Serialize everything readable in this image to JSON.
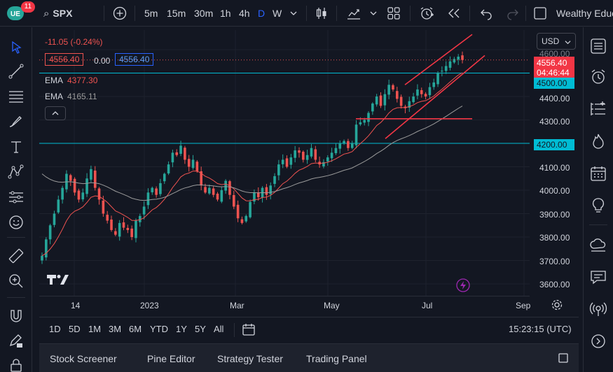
{
  "toolbar": {
    "badge": "11",
    "symbol": "SPX",
    "timeframes": [
      "5m",
      "15m",
      "30m",
      "1h",
      "4h",
      "D",
      "W"
    ],
    "active_timeframe": "D",
    "layout_name": "Wealthy Educ"
  },
  "legend": {
    "change": "-11.05 (-0.24%)",
    "bid": "4556.40",
    "spread": "0.00",
    "ask": "4556.40",
    "ema1_label": "EMA",
    "ema1_value": "4377.30",
    "ema2_label": "EMA",
    "ema2_value": "4165.11"
  },
  "price_axis": {
    "currency": "USD",
    "current_price": "4556.40",
    "countdown": "04:46:44",
    "level_4500": "4500.00",
    "level_4200": "4200.00",
    "ticks": [
      "4600.00",
      "4400.00",
      "4300.00",
      "4100.00",
      "4000.00",
      "3900.00",
      "3800.00",
      "3700.00",
      "3600.00"
    ]
  },
  "time_axis": {
    "labels": [
      "14",
      "2023",
      "Mar",
      "May",
      "Jul",
      "Sep"
    ]
  },
  "range_bar": {
    "ranges": [
      "1D",
      "5D",
      "1M",
      "3M",
      "6M",
      "YTD",
      "1Y",
      "5Y",
      "All"
    ],
    "clock": "15:23:15 (UTC)"
  },
  "bottom_tabs": [
    "Stock Screener",
    "Pine Editor",
    "Strategy Tester",
    "Trading Panel"
  ],
  "colors": {
    "up": "#26a69a",
    "down": "#ef5350",
    "ema_fast": "#ef5350",
    "ema_slow": "#9b9b9b",
    "hline": "#00bcd4",
    "trendline": "#f23645",
    "accent": "#2962ff"
  },
  "chart_data": {
    "type": "candlestick",
    "ylim": [
      3600,
      4600
    ],
    "closes": [
      3720,
      3790,
      3850,
      3900,
      3960,
      4010,
      4070,
      4040,
      3990,
      3960,
      3990,
      4050,
      4090,
      4010,
      3960,
      3900,
      3870,
      3830,
      3810,
      3860,
      3840,
      3830,
      3800,
      3870,
      3890,
      3930,
      3990,
      4010,
      3980,
      4030,
      4070,
      4110,
      4160,
      4150,
      4190,
      4130,
      4100,
      4130,
      4080,
      4020,
      3990,
      4010,
      3980,
      3960,
      4000,
      4040,
      3980,
      3930,
      3880,
      3860,
      3890,
      3950,
      3990,
      3970,
      4010,
      3980,
      4020,
      4060,
      4110,
      4130,
      4100,
      4140,
      4170,
      4160,
      4130,
      4150,
      4180,
      4130,
      4110,
      4120,
      4140,
      4160,
      4180,
      4200,
      4210,
      4180,
      4200,
      4280,
      4290,
      4300,
      4330,
      4370,
      4400,
      4360,
      4410,
      4450,
      4430,
      4390,
      4360,
      4350,
      4380,
      4400,
      4430,
      4410,
      4400,
      4440,
      4460,
      4500,
      4510,
      4530,
      4550,
      4560,
      4570,
      4556
    ]
  }
}
